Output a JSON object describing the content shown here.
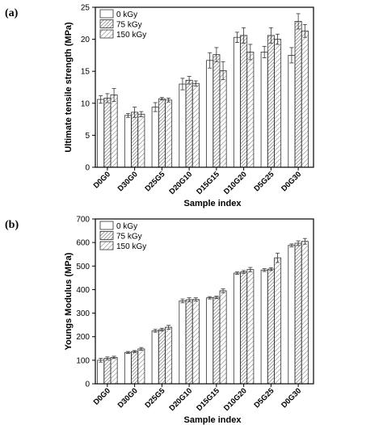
{
  "panels": [
    {
      "label": "(a)"
    },
    {
      "label": "(b)"
    }
  ],
  "chart_data": [
    {
      "type": "bar",
      "panel": "(a)",
      "categories": [
        "D0G0",
        "D30G0",
        "D25G5",
        "D20G10",
        "D15G15",
        "D10G20",
        "D5G25",
        "D0G30"
      ],
      "series": [
        {
          "name": "0 kGy",
          "values": [
            10.6,
            8.1,
            9.4,
            13.0,
            16.7,
            20.3,
            18.0,
            17.5
          ],
          "errors": [
            0.6,
            0.3,
            0.7,
            0.9,
            1.2,
            0.8,
            0.9,
            1.2
          ]
        },
        {
          "name": "75 kGy",
          "values": [
            10.8,
            8.6,
            10.7,
            13.6,
            17.6,
            20.6,
            20.6,
            22.8
          ],
          "errors": [
            0.7,
            0.8,
            0.2,
            0.6,
            1.1,
            1.2,
            1.2,
            1.2
          ]
        },
        {
          "name": "150 kGy",
          "values": [
            11.3,
            8.3,
            10.5,
            13.1,
            15.1,
            18.0,
            20.0,
            21.3
          ],
          "errors": [
            1.0,
            0.4,
            0.3,
            0.4,
            1.4,
            1.2,
            0.8,
            1.0
          ]
        }
      ],
      "xlabel": "Sample index",
      "ylabel": "Ultimate tensile strength (MPa)",
      "ylim": [
        0,
        25
      ],
      "yticks": [
        0,
        5,
        10,
        15,
        20,
        25
      ],
      "legend": "top-left",
      "grid": false
    },
    {
      "type": "bar",
      "panel": "(b)",
      "categories": [
        "D0G0",
        "D30G0",
        "D25G5",
        "D20G10",
        "D15G15",
        "D10G20",
        "D5G25",
        "D0G30"
      ],
      "series": [
        {
          "name": "0 kGy",
          "values": [
            100,
            133,
            225,
            352,
            365,
            470,
            483,
            588
          ],
          "errors": [
            8,
            4,
            6,
            8,
            5,
            5,
            6,
            6
          ]
        },
        {
          "name": "75 kGy",
          "values": [
            108,
            137,
            230,
            357,
            367,
            475,
            487,
            597
          ],
          "errors": [
            6,
            4,
            6,
            8,
            5,
            6,
            6,
            10
          ]
        },
        {
          "name": "150 kGy",
          "values": [
            112,
            148,
            240,
            358,
            395,
            485,
            535,
            605
          ],
          "errors": [
            5,
            6,
            8,
            7,
            8,
            9,
            20,
            12
          ]
        }
      ],
      "xlabel": "Sample index",
      "ylabel": "Youngs Modulus (MPa)",
      "ylim": [
        0,
        700
      ],
      "yticks": [
        0,
        100,
        200,
        300,
        400,
        500,
        600,
        700
      ],
      "legend": "top-left",
      "grid": false
    }
  ]
}
